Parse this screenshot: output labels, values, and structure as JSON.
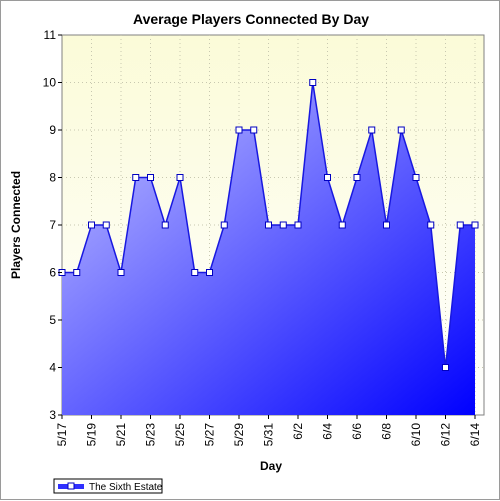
{
  "chart_data": {
    "type": "area",
    "title": "Average Players Connected By Day",
    "xlabel": "Day",
    "ylabel": "Players Connected",
    "ylim": [
      3,
      11
    ],
    "yticks": [
      "3",
      "4",
      "5",
      "6",
      "7",
      "8",
      "9",
      "10",
      "11"
    ],
    "xticks": [
      "5/17",
      "5/19",
      "5/21",
      "5/23",
      "5/25",
      "5/27",
      "5/29",
      "5/31",
      "6/2",
      "6/4",
      "6/6",
      "6/8",
      "6/10",
      "6/12",
      "6/14"
    ],
    "grid": true,
    "legend_position": "bottom-left",
    "x": [
      "5/17",
      "5/18",
      "5/19",
      "5/20",
      "5/21",
      "5/22",
      "5/23",
      "5/24",
      "5/25",
      "5/26",
      "5/27",
      "5/28",
      "5/29",
      "5/30",
      "5/31",
      "6/1",
      "6/2",
      "6/3",
      "6/4",
      "6/5",
      "6/6",
      "6/7",
      "6/8",
      "6/9",
      "6/10",
      "6/11",
      "6/12",
      "6/13",
      "6/14"
    ],
    "series": [
      {
        "name": "The Sixth Estate",
        "color": "#0000e8",
        "values": [
          6,
          6,
          7,
          7,
          6,
          8,
          8,
          7,
          8,
          6,
          6,
          7,
          9,
          9,
          7,
          7,
          7,
          10,
          8,
          7,
          8,
          9,
          7,
          9,
          8,
          7,
          4,
          7,
          7
        ]
      }
    ]
  },
  "colors": {
    "plot_bg_top": "#fbfbd8",
    "plot_bg_bottom": "#ffffff",
    "area_light": "#c8c8ff",
    "area_dark": "#0000ff",
    "line": "#1818e0"
  }
}
